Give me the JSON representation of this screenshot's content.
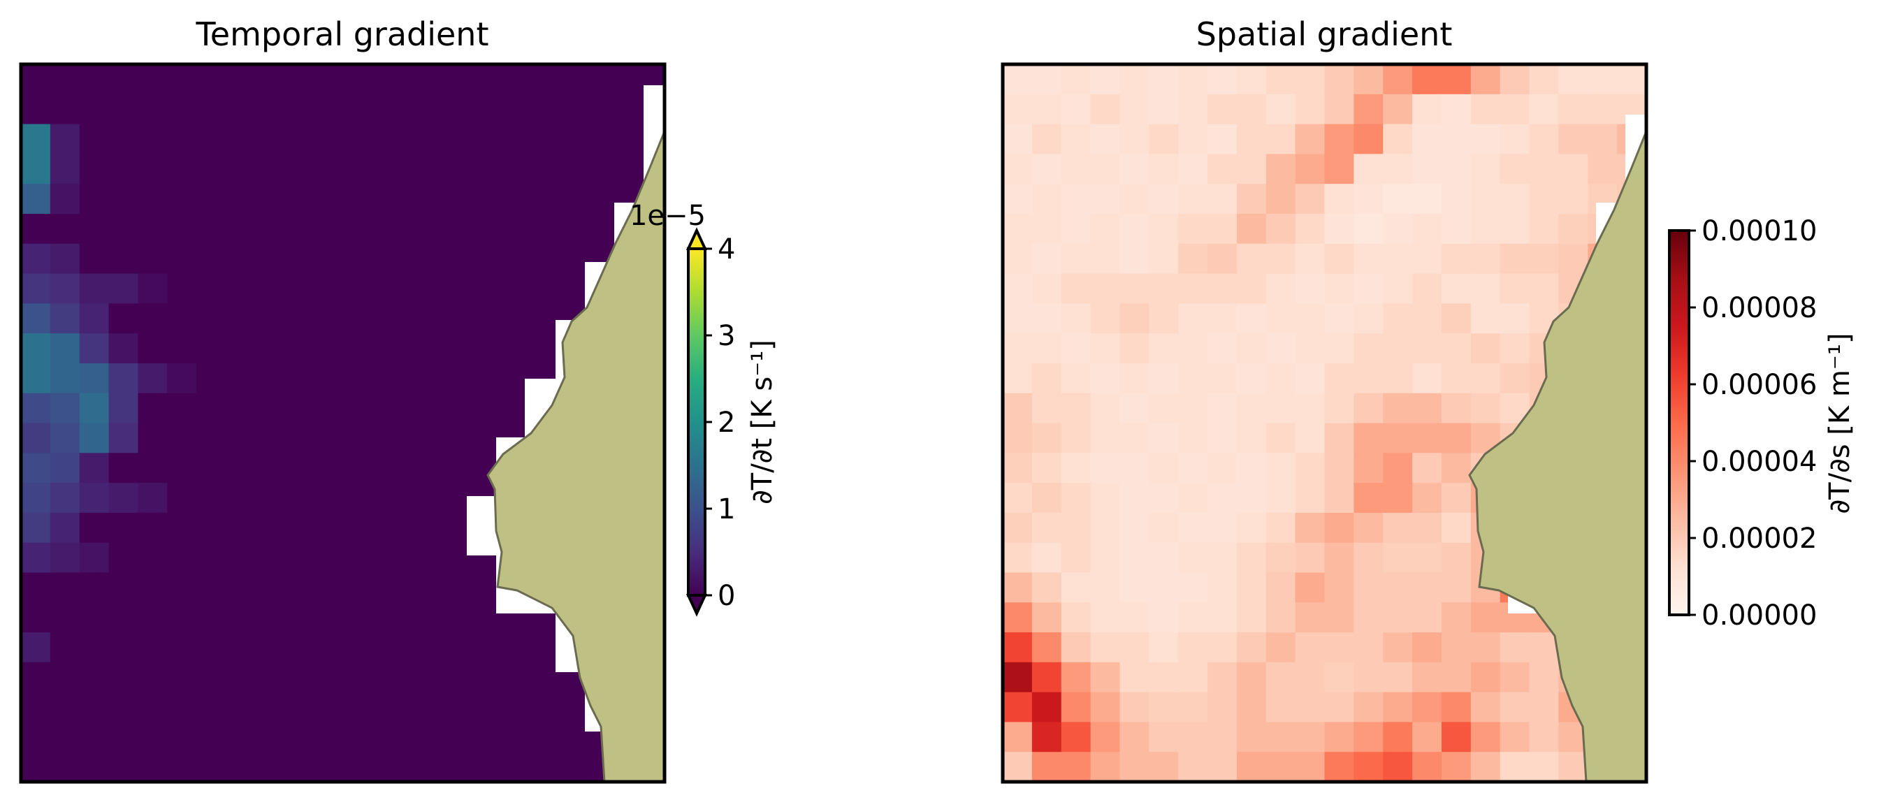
{
  "chart_data": [
    {
      "type": "heatmap",
      "title": "Temporal gradient",
      "grid_shape": [
        24,
        22
      ],
      "colormap": "viridis",
      "land_color": "#bfc083",
      "colorbar": {
        "label": "∂T/∂t [K s⁻¹]",
        "offset_label": "1e−5",
        "ticks": [
          "0",
          "1",
          "2",
          "3",
          "4"
        ],
        "tick_values": [
          0,
          1,
          2,
          3,
          4
        ],
        "range": [
          0,
          4
        ],
        "extend": "both"
      },
      "values_note": "near-zero everywhere except a weak patch along the western edge (~0.4–1.0e-5 K/s)",
      "hotspots": [
        {
          "row": 2,
          "col": 0,
          "value": 1.6
        },
        {
          "row": 3,
          "col": 0,
          "value": 1.6
        },
        {
          "row": 4,
          "col": 0,
          "value": 1.2
        },
        {
          "row": 2,
          "col": 1,
          "value": 0.3
        },
        {
          "row": 3,
          "col": 1,
          "value": 0.3
        },
        {
          "row": 4,
          "col": 1,
          "value": 0.2
        },
        {
          "row": 6,
          "col": 0,
          "value": 0.4
        },
        {
          "row": 6,
          "col": 1,
          "value": 0.3
        },
        {
          "row": 7,
          "col": 0,
          "value": 0.6
        },
        {
          "row": 7,
          "col": 1,
          "value": 0.5
        },
        {
          "row": 7,
          "col": 2,
          "value": 0.3
        },
        {
          "row": 7,
          "col": 3,
          "value": 0.3
        },
        {
          "row": 7,
          "col": 4,
          "value": 0.1
        },
        {
          "row": 8,
          "col": 0,
          "value": 1.0
        },
        {
          "row": 8,
          "col": 1,
          "value": 0.7
        },
        {
          "row": 8,
          "col": 2,
          "value": 0.4
        },
        {
          "row": 9,
          "col": 0,
          "value": 1.5
        },
        {
          "row": 9,
          "col": 1,
          "value": 1.3
        },
        {
          "row": 9,
          "col": 2,
          "value": 0.6
        },
        {
          "row": 9,
          "col": 3,
          "value": 0.2
        },
        {
          "row": 10,
          "col": 0,
          "value": 1.5
        },
        {
          "row": 10,
          "col": 1,
          "value": 1.3
        },
        {
          "row": 10,
          "col": 2,
          "value": 1.2
        },
        {
          "row": 10,
          "col": 3,
          "value": 0.6
        },
        {
          "row": 10,
          "col": 4,
          "value": 0.3
        },
        {
          "row": 10,
          "col": 5,
          "value": 0.1
        },
        {
          "row": 11,
          "col": 0,
          "value": 0.9
        },
        {
          "row": 11,
          "col": 1,
          "value": 1.0
        },
        {
          "row": 11,
          "col": 2,
          "value": 1.4
        },
        {
          "row": 11,
          "col": 3,
          "value": 0.6
        },
        {
          "row": 12,
          "col": 0,
          "value": 0.7
        },
        {
          "row": 12,
          "col": 1,
          "value": 0.9
        },
        {
          "row": 12,
          "col": 2,
          "value": 1.3
        },
        {
          "row": 12,
          "col": 3,
          "value": 0.5
        },
        {
          "row": 13,
          "col": 0,
          "value": 0.9
        },
        {
          "row": 13,
          "col": 1,
          "value": 0.8
        },
        {
          "row": 13,
          "col": 2,
          "value": 0.3
        },
        {
          "row": 14,
          "col": 0,
          "value": 0.8
        },
        {
          "row": 14,
          "col": 1,
          "value": 0.6
        },
        {
          "row": 14,
          "col": 2,
          "value": 0.4
        },
        {
          "row": 14,
          "col": 3,
          "value": 0.3
        },
        {
          "row": 14,
          "col": 4,
          "value": 0.2
        },
        {
          "row": 15,
          "col": 0,
          "value": 0.7
        },
        {
          "row": 15,
          "col": 1,
          "value": 0.4
        },
        {
          "row": 16,
          "col": 0,
          "value": 0.4
        },
        {
          "row": 16,
          "col": 1,
          "value": 0.3
        },
        {
          "row": 16,
          "col": 2,
          "value": 0.2
        },
        {
          "row": 19,
          "col": 0,
          "value": 0.3
        }
      ]
    },
    {
      "type": "heatmap",
      "title": "Spatial gradient",
      "grid_shape": [
        24,
        22
      ],
      "colormap": "Reds",
      "land_color": "#bfc083",
      "colorbar": {
        "label": "∂T/∂s [K m⁻¹]",
        "ticks": [
          "0.00000",
          "0.00002",
          "0.00004",
          "0.00006",
          "0.00008",
          "0.00010"
        ],
        "tick_values": [
          0,
          2e-05,
          4e-05,
          6e-05,
          8e-05,
          0.0001
        ],
        "range": [
          0,
          0.0001
        ]
      },
      "values_note": "units of 1e-5 K/m, row 0 at top, column 0 at left",
      "values_scale": 1e-05,
      "values": [
        [
          1.0,
          1.0,
          1.2,
          1.0,
          1.2,
          1.0,
          1.2,
          1.0,
          1.2,
          1.5,
          1.5,
          2.0,
          2.5,
          3.5,
          4.5,
          4.5,
          3.0,
          2.0,
          1.5,
          1.2,
          1.2,
          1.2
        ],
        [
          1.2,
          1.2,
          1.0,
          1.5,
          1.2,
          1.0,
          1.2,
          1.5,
          1.5,
          1.2,
          1.5,
          2.0,
          3.5,
          2.5,
          1.2,
          1.0,
          1.5,
          1.5,
          1.2,
          1.5,
          1.5,
          1.5
        ],
        [
          1.0,
          1.5,
          1.2,
          1.0,
          1.2,
          1.5,
          1.2,
          1.0,
          1.5,
          1.5,
          2.5,
          3.5,
          4.0,
          1.5,
          1.0,
          1.0,
          1.0,
          1.2,
          1.5,
          2.0,
          2.0,
          2.5
        ],
        [
          1.2,
          1.0,
          1.2,
          1.2,
          1.0,
          1.2,
          1.0,
          1.5,
          1.5,
          2.5,
          3.0,
          3.5,
          1.2,
          1.2,
          1.0,
          1.0,
          1.2,
          1.5,
          1.5,
          1.5,
          2.0,
          2.0
        ],
        [
          1.0,
          1.2,
          1.0,
          1.0,
          1.2,
          1.0,
          1.2,
          1.2,
          2.0,
          2.5,
          2.0,
          1.2,
          1.0,
          0.8,
          0.8,
          1.0,
          1.2,
          1.2,
          1.5,
          1.5,
          1.8,
          2.0
        ],
        [
          1.2,
          1.2,
          1.0,
          1.2,
          1.0,
          1.2,
          1.5,
          1.5,
          2.5,
          2.0,
          1.5,
          1.0,
          0.8,
          1.0,
          1.2,
          1.0,
          1.2,
          1.2,
          1.5,
          1.8,
          2.0,
          2.5
        ],
        [
          1.2,
          1.0,
          1.2,
          1.2,
          1.0,
          1.2,
          1.8,
          2.0,
          1.5,
          1.5,
          1.2,
          1.5,
          1.2,
          1.2,
          1.2,
          1.5,
          1.5,
          1.8,
          1.8,
          2.0,
          3.0,
          3.0
        ],
        [
          1.0,
          1.2,
          1.5,
          1.5,
          1.5,
          1.5,
          1.5,
          1.5,
          1.5,
          1.2,
          1.0,
          1.2,
          1.0,
          1.2,
          1.5,
          1.2,
          1.2,
          1.5,
          1.5,
          2.0,
          2.5,
          3.0
        ],
        [
          1.0,
          1.0,
          1.2,
          1.5,
          1.8,
          1.5,
          1.2,
          1.2,
          1.0,
          1.2,
          1.2,
          1.0,
          1.2,
          1.5,
          1.5,
          1.8,
          1.2,
          1.2,
          1.5,
          1.8,
          2.5,
          3.0
        ],
        [
          1.2,
          1.2,
          1.0,
          1.2,
          1.5,
          1.2,
          1.2,
          1.0,
          1.2,
          1.0,
          1.2,
          1.2,
          1.5,
          1.5,
          1.5,
          1.5,
          1.8,
          1.5,
          1.8,
          2.5,
          3.0,
          3.0
        ],
        [
          1.2,
          1.5,
          1.2,
          1.0,
          1.2,
          1.0,
          1.2,
          1.2,
          1.0,
          1.2,
          1.0,
          1.5,
          1.5,
          1.5,
          1.2,
          1.5,
          1.5,
          1.8,
          2.0,
          2.5,
          3.0,
          3.0
        ],
        [
          2.0,
          1.5,
          1.5,
          1.2,
          1.0,
          1.2,
          1.2,
          1.0,
          1.2,
          1.2,
          1.2,
          1.5,
          2.0,
          2.5,
          2.5,
          2.0,
          1.8,
          1.5,
          2.0,
          2.5,
          3.0,
          3.0
        ],
        [
          2.0,
          1.8,
          1.5,
          1.2,
          1.2,
          1.0,
          1.2,
          1.0,
          1.2,
          1.5,
          1.2,
          2.0,
          3.0,
          3.0,
          3.0,
          3.0,
          2.5,
          2.0,
          2.5,
          3.0,
          3.0,
          3.0
        ],
        [
          1.8,
          1.5,
          1.2,
          1.0,
          1.0,
          1.2,
          1.0,
          1.2,
          1.0,
          1.2,
          1.5,
          2.0,
          3.0,
          3.5,
          2.0,
          2.5,
          2.0,
          2.5,
          3.0,
          3.0,
          3.0,
          3.0
        ],
        [
          1.5,
          1.8,
          1.5,
          1.2,
          1.0,
          1.0,
          1.2,
          1.0,
          1.0,
          1.2,
          1.5,
          2.0,
          3.5,
          3.5,
          2.5,
          2.0,
          3.0,
          2.5,
          3.0,
          3.0,
          3.0,
          3.0
        ],
        [
          1.8,
          1.5,
          1.5,
          1.2,
          1.0,
          1.2,
          1.0,
          1.0,
          1.2,
          1.5,
          2.5,
          3.0,
          2.5,
          2.0,
          2.0,
          1.5,
          2.5,
          2.5,
          3.0,
          3.0,
          3.0,
          3.0
        ],
        [
          1.5,
          1.2,
          1.5,
          1.2,
          1.0,
          1.0,
          1.2,
          1.2,
          1.5,
          1.8,
          2.0,
          2.5,
          2.0,
          1.8,
          1.8,
          2.0,
          2.5,
          3.0,
          3.0,
          3.0,
          3.0,
          3.0
        ],
        [
          2.5,
          1.8,
          1.2,
          1.2,
          1.0,
          1.0,
          1.0,
          1.2,
          1.5,
          2.0,
          3.0,
          2.5,
          2.0,
          2.0,
          2.0,
          2.0,
          2.5,
          4.5,
          3.5,
          3.0,
          3.0,
          3.0
        ],
        [
          4.0,
          2.5,
          1.5,
          1.2,
          1.2,
          1.0,
          1.2,
          1.2,
          1.5,
          2.0,
          2.5,
          2.5,
          2.0,
          2.0,
          2.0,
          2.5,
          3.0,
          3.0,
          3.0,
          3.0,
          3.0,
          3.0
        ],
        [
          6.0,
          4.0,
          2.0,
          1.5,
          1.5,
          1.2,
          1.5,
          1.5,
          2.0,
          2.5,
          2.0,
          2.0,
          2.0,
          2.5,
          3.0,
          2.5,
          2.5,
          2.0,
          2.0,
          4.5,
          3.0,
          3.0
        ],
        [
          8.5,
          6.0,
          3.5,
          2.5,
          1.5,
          1.5,
          1.5,
          2.0,
          2.5,
          2.0,
          2.0,
          1.8,
          2.0,
          2.0,
          2.5,
          2.5,
          3.0,
          2.5,
          2.0,
          2.5,
          3.5,
          3.0
        ],
        [
          6.0,
          7.5,
          4.0,
          3.0,
          2.0,
          1.8,
          1.8,
          2.0,
          2.5,
          2.0,
          2.0,
          2.0,
          2.5,
          3.0,
          3.5,
          4.0,
          2.5,
          2.0,
          2.0,
          3.0,
          3.0,
          3.0
        ],
        [
          3.0,
          7.0,
          5.5,
          3.5,
          2.5,
          2.0,
          2.0,
          2.0,
          2.5,
          2.5,
          2.5,
          3.0,
          3.5,
          4.5,
          3.0,
          5.5,
          3.5,
          2.5,
          2.0,
          2.5,
          3.0,
          3.0
        ],
        [
          2.0,
          4.0,
          4.0,
          3.0,
          2.5,
          2.5,
          2.0,
          2.0,
          3.0,
          3.0,
          3.0,
          4.5,
          5.0,
          5.5,
          4.0,
          3.5,
          2.5,
          1.5,
          1.5,
          2.0,
          2.5,
          3.0
        ]
      ]
    }
  ]
}
